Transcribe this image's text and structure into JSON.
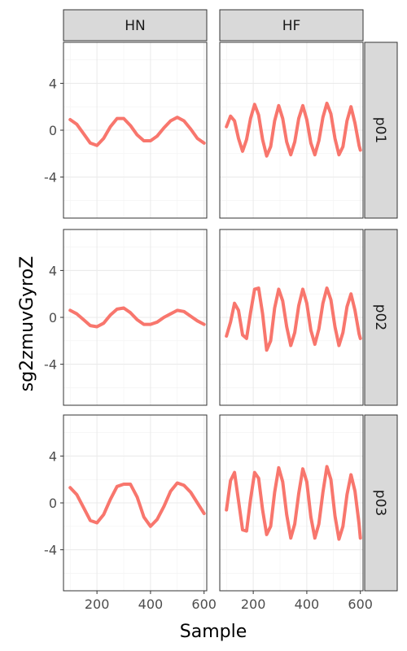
{
  "chart_data": {
    "type": "line",
    "xlabel": "Sample",
    "ylabel": "sg2zmuvGyroZ",
    "columns": [
      "HN",
      "HF"
    ],
    "rows": [
      "p01",
      "p02",
      "p03"
    ],
    "xlim": [
      75,
      610
    ],
    "ylim": [
      -7.5,
      7.5
    ],
    "xticks": [
      200,
      400,
      600
    ],
    "yticks": [
      -4,
      0,
      4
    ],
    "grid": true,
    "line_color": "#F8766D",
    "panels": [
      {
        "row": "p01",
        "col": "HN",
        "x": [
          100,
          125,
          150,
          175,
          200,
          225,
          250,
          275,
          300,
          325,
          350,
          375,
          400,
          425,
          450,
          475,
          500,
          525,
          550,
          575,
          600
        ],
        "y": [
          0.9,
          0.5,
          -0.3,
          -1.1,
          -1.3,
          -0.7,
          0.3,
          1.0,
          1.0,
          0.4,
          -0.4,
          -0.9,
          -0.9,
          -0.5,
          0.2,
          0.8,
          1.1,
          0.8,
          0.1,
          -0.7,
          -1.1
        ]
      },
      {
        "row": "p01",
        "col": "HF",
        "x": [
          100,
          115,
          130,
          145,
          160,
          175,
          190,
          205,
          220,
          235,
          250,
          265,
          280,
          295,
          310,
          325,
          340,
          355,
          370,
          385,
          400,
          415,
          430,
          445,
          460,
          475,
          490,
          505,
          520,
          535,
          550,
          565,
          580,
          595,
          600
        ],
        "y": [
          0.3,
          1.2,
          0.8,
          -0.7,
          -1.8,
          -0.8,
          1.0,
          2.2,
          1.3,
          -0.8,
          -2.2,
          -1.4,
          0.8,
          2.1,
          1.0,
          -1.0,
          -2.1,
          -1.0,
          1.0,
          2.1,
          0.9,
          -1.1,
          -2.1,
          -0.9,
          1.1,
          2.3,
          1.4,
          -0.7,
          -2.1,
          -1.4,
          0.8,
          2.0,
          0.6,
          -1.3,
          -1.7
        ]
      },
      {
        "row": "p02",
        "col": "HN",
        "x": [
          100,
          125,
          150,
          175,
          200,
          225,
          250,
          275,
          300,
          325,
          350,
          375,
          400,
          425,
          450,
          475,
          500,
          525,
          550,
          575,
          600
        ],
        "y": [
          0.6,
          0.3,
          -0.2,
          -0.7,
          -0.8,
          -0.5,
          0.2,
          0.7,
          0.8,
          0.4,
          -0.2,
          -0.6,
          -0.6,
          -0.4,
          0.0,
          0.3,
          0.6,
          0.5,
          0.1,
          -0.3,
          -0.6
        ]
      },
      {
        "row": "p02",
        "col": "HF",
        "x": [
          100,
          115,
          130,
          145,
          160,
          175,
          190,
          205,
          220,
          235,
          250,
          265,
          280,
          295,
          310,
          325,
          340,
          355,
          370,
          385,
          400,
          415,
          430,
          445,
          460,
          475,
          490,
          505,
          520,
          535,
          550,
          565,
          580,
          595,
          600
        ],
        "y": [
          -1.6,
          -0.4,
          1.2,
          0.6,
          -1.5,
          -1.8,
          0.4,
          2.4,
          2.5,
          0.3,
          -2.8,
          -2.0,
          0.8,
          2.4,
          1.4,
          -0.8,
          -2.4,
          -1.3,
          1.0,
          2.4,
          1.2,
          -1.1,
          -2.3,
          -1.0,
          1.2,
          2.5,
          1.5,
          -0.8,
          -2.4,
          -1.3,
          0.9,
          2.0,
          0.6,
          -1.4,
          -1.8
        ]
      },
      {
        "row": "p03",
        "col": "HN",
        "x": [
          100,
          125,
          150,
          175,
          200,
          225,
          250,
          275,
          300,
          325,
          350,
          375,
          400,
          425,
          450,
          475,
          500,
          525,
          550,
          575,
          600
        ],
        "y": [
          1.3,
          0.7,
          -0.4,
          -1.5,
          -1.7,
          -1.0,
          0.3,
          1.4,
          1.6,
          1.6,
          0.5,
          -1.2,
          -2.0,
          -1.4,
          -0.3,
          1.0,
          1.7,
          1.5,
          0.9,
          0.0,
          -0.9
        ]
      },
      {
        "row": "p03",
        "col": "HF",
        "x": [
          100,
          115,
          130,
          145,
          160,
          175,
          190,
          205,
          220,
          235,
          250,
          265,
          280,
          295,
          310,
          325,
          340,
          355,
          370,
          385,
          400,
          415,
          430,
          445,
          460,
          475,
          490,
          505,
          520,
          535,
          550,
          565,
          580,
          595,
          600
        ],
        "y": [
          -0.6,
          1.9,
          2.6,
          0.2,
          -2.3,
          -2.4,
          0.3,
          2.6,
          2.1,
          -0.6,
          -2.7,
          -2.0,
          0.9,
          3.0,
          1.8,
          -1.0,
          -3.0,
          -1.8,
          0.8,
          2.9,
          1.8,
          -1.2,
          -3.0,
          -1.8,
          0.9,
          3.1,
          2.0,
          -1.1,
          -3.1,
          -2.0,
          0.7,
          2.4,
          1.0,
          -1.8,
          -3.0
        ]
      }
    ]
  }
}
